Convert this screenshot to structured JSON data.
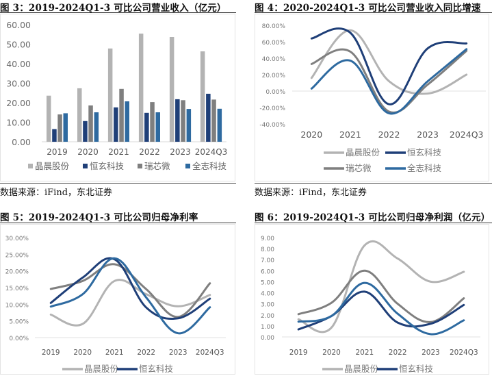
{
  "series_names": [
    "晶晨股份",
    "恒玄科技",
    "瑞芯微",
    "全志科技"
  ],
  "series_colors": [
    "#b3b3b3",
    "#1f3f78",
    "#7f7f7f",
    "#2e6aa0"
  ],
  "source_text": "数据来源：iFind，东北证券",
  "chart_data": [
    {
      "id": "fig3",
      "type": "bar",
      "title": "图 3：2019-2024Q1-3 可比公司营业收入（亿元）",
      "xlabel": "",
      "ylabel": "",
      "categories": [
        "2019",
        "2020",
        "2021",
        "2022",
        "2023",
        "2024Q3"
      ],
      "ylim": [
        0,
        60
      ],
      "yticks": [
        "0.00",
        "10.00",
        "20.00",
        "30.00",
        "40.00",
        "50.00",
        "60.00"
      ],
      "grid": false,
      "legend": "bottom",
      "series": [
        {
          "name": "晶晨股份",
          "values": [
            23.6,
            27.4,
            47.8,
            55.4,
            53.7,
            46.3
          ]
        },
        {
          "name": "恒玄科技",
          "values": [
            6.5,
            10.6,
            17.6,
            14.8,
            21.8,
            24.6
          ]
        },
        {
          "name": "瑞芯微",
          "values": [
            14.0,
            18.6,
            27.1,
            20.3,
            21.3,
            21.6
          ]
        },
        {
          "name": "全志科技",
          "values": [
            14.6,
            15.1,
            20.7,
            15.1,
            16.8,
            16.9
          ]
        }
      ]
    },
    {
      "id": "fig4",
      "type": "line",
      "title": "图 4：2020-2024Q1-3 可比公司营业收入同比增速",
      "xlabel": "",
      "ylabel": "",
      "categories": [
        "2020",
        "2021",
        "2022",
        "2023",
        "2024Q3"
      ],
      "ylim": [
        -40,
        80
      ],
      "yticks": [
        "-40.00%",
        "-20.00%",
        "0.00%",
        "20.00%",
        "40.00%",
        "60.00%",
        "80.00%"
      ],
      "unit": "%",
      "grid": false,
      "legend": "bottom",
      "series": [
        {
          "name": "晶晨股份",
          "values": [
            16,
            74,
            12,
            -3,
            20
          ]
        },
        {
          "name": "恒玄科技",
          "values": [
            64,
            71,
            -16,
            52,
            58
          ]
        },
        {
          "name": "瑞芯微",
          "values": [
            33,
            48,
            -25,
            8,
            49
          ]
        },
        {
          "name": "全志科技",
          "values": [
            3,
            37,
            -27,
            12,
            51
          ]
        }
      ]
    },
    {
      "id": "fig5",
      "type": "line",
      "title": "图 5：2019-2024Q1-3 可比公司归母净利率",
      "xlabel": "",
      "ylabel": "",
      "categories": [
        "2019",
        "2020",
        "2021",
        "2022",
        "2023",
        "2024Q3"
      ],
      "ylim": [
        0,
        30
      ],
      "yticks": [
        "0.00%",
        "5.00%",
        "10.00%",
        "15.00%",
        "20.00%",
        "25.00%",
        "30.00%"
      ],
      "unit": "%",
      "grid": false,
      "legend": "bottom",
      "series": [
        {
          "name": "晶晨股份",
          "values": [
            6.9,
            4.1,
            17.0,
            13.0,
            9.4,
            12.8
          ]
        },
        {
          "name": "恒玄科技",
          "values": [
            10.4,
            18.0,
            23.5,
            9.0,
            5.8,
            11.7
          ]
        },
        {
          "name": "瑞芯微",
          "values": [
            14.6,
            17.0,
            22.0,
            14.5,
            6.2,
            16.3
          ]
        },
        {
          "name": "全志科技",
          "values": [
            9.3,
            13.0,
            23.8,
            12.0,
            1.3,
            9.1
          ]
        }
      ]
    },
    {
      "id": "fig6",
      "type": "line",
      "title": "图 6：2019-2024Q1-3 可比公司归母净利润（亿元）",
      "xlabel": "",
      "ylabel": "",
      "categories": [
        "2019",
        "2020",
        "2021",
        "2022",
        "2023",
        "2024Q3"
      ],
      "ylim": [
        0,
        9
      ],
      "yticks": [
        "0.00",
        "1.00",
        "2.00",
        "3.00",
        "4.00",
        "5.00",
        "6.00",
        "7.00",
        "8.00",
        "9.00"
      ],
      "unit": "亿元",
      "grid": false,
      "legend": "bottom",
      "series": [
        {
          "name": "晶晨股份",
          "values": [
            1.6,
            0.85,
            8.3,
            7.1,
            5.0,
            5.9
          ]
        },
        {
          "name": "恒玄科技",
          "values": [
            0.68,
            1.9,
            4.1,
            1.3,
            1.2,
            2.9
          ]
        },
        {
          "name": "瑞芯微",
          "values": [
            2.06,
            3.1,
            6.0,
            3.0,
            1.35,
            3.5
          ]
        },
        {
          "name": "全志科技",
          "values": [
            1.38,
            1.9,
            4.9,
            2.1,
            0.25,
            1.5
          ]
        }
      ]
    }
  ]
}
